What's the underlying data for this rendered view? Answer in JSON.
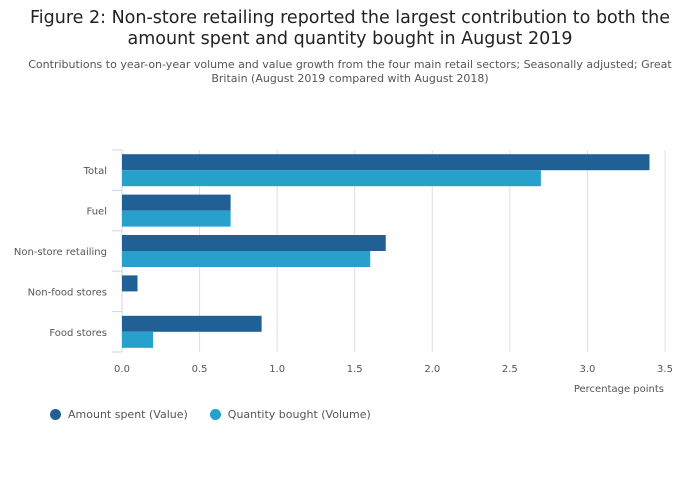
{
  "chart_data": {
    "type": "bar",
    "orientation": "horizontal",
    "title": "Figure 2: Non-store retailing reported the largest contribution to both the amount spent and quantity bought in August 2019",
    "subtitle": "Contributions to year-on-year volume and value growth from the four main retail sectors; Seasonally adjusted; Great Britain (August 2019 compared with August 2018)",
    "categories": [
      "Total",
      "Fuel",
      "Non-store retailing",
      "Non-food stores",
      "Food stores"
    ],
    "series": [
      {
        "name": "Amount spent (Value)",
        "color": "#206095",
        "values": [
          3.4,
          0.7,
          1.7,
          0.1,
          0.9
        ]
      },
      {
        "name": "Quantity bought (Volume)",
        "color": "#27a0cc",
        "values": [
          2.7,
          0.7,
          1.6,
          0.0,
          0.2
        ]
      }
    ],
    "xlabel": "Percentage points",
    "xlim": [
      0,
      3.5
    ],
    "xticks": [
      "0.0",
      "0.5",
      "1.0",
      "1.5",
      "2.0",
      "2.5",
      "3.0",
      "3.5"
    ],
    "grid": true,
    "legend": "bottom-left"
  }
}
